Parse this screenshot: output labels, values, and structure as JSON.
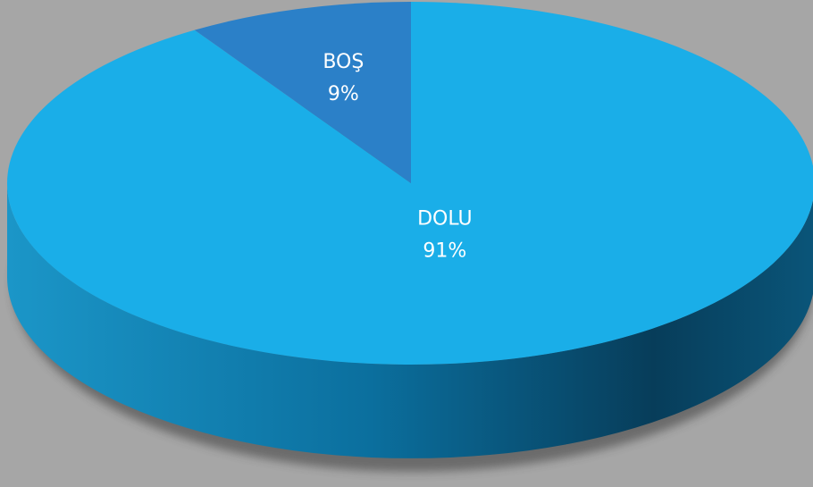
{
  "chart_data": {
    "type": "pie",
    "categories": [
      "DOLU",
      "BOŞ"
    ],
    "values": [
      91,
      9
    ],
    "value_labels": [
      "91%",
      "9%"
    ],
    "colors": [
      "#1aaee8",
      "#2b80c8"
    ]
  }
}
